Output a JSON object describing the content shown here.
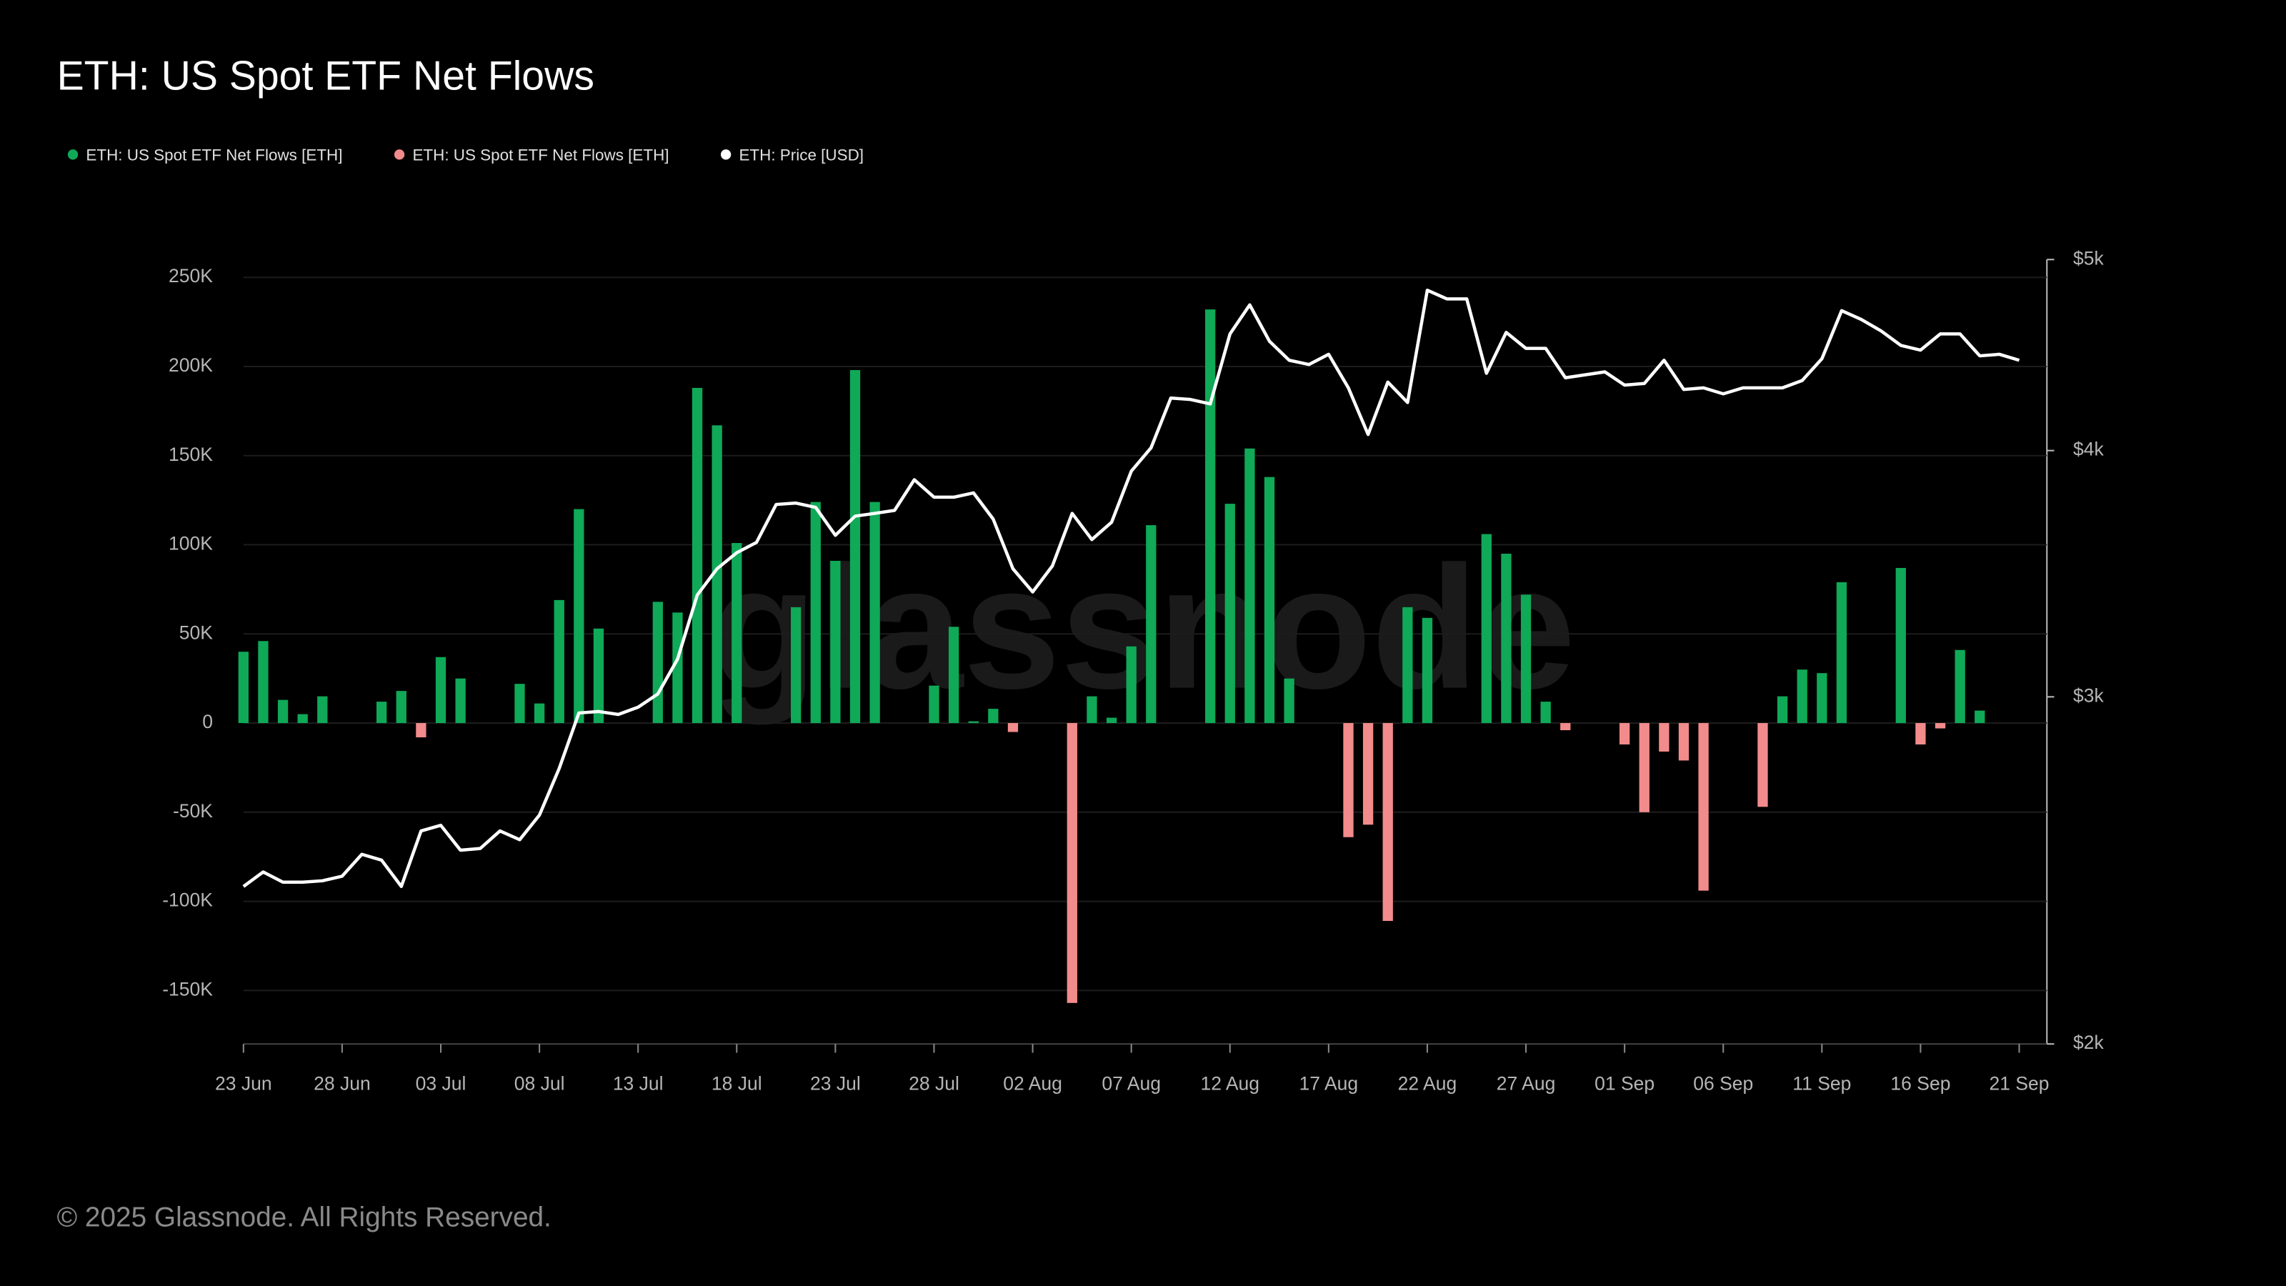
{
  "chart_data": {
    "type": "bar-line",
    "title": "ETH: US Spot ETF Net Flows",
    "watermark": "glassnode",
    "footer": "© 2025 Glassnode. All Rights Reserved.",
    "categories": [
      "23 Jun",
      null,
      null,
      null,
      null,
      "28 Jun",
      null,
      null,
      null,
      null,
      "03 Jul",
      null,
      null,
      null,
      null,
      "08 Jul",
      null,
      null,
      null,
      null,
      "13 Jul",
      null,
      null,
      null,
      null,
      "18 Jul",
      null,
      null,
      null,
      null,
      "23 Jul",
      null,
      null,
      null,
      null,
      "28 Jul",
      null,
      null,
      null,
      null,
      "02 Aug",
      null,
      null,
      null,
      null,
      "07 Aug",
      null,
      null,
      null,
      null,
      "12 Aug",
      null,
      null,
      null,
      null,
      "17 Aug",
      null,
      null,
      null,
      null,
      "22 Aug",
      null,
      null,
      null,
      null,
      "27 Aug",
      null,
      null,
      null,
      null,
      "01 Sep",
      null,
      null,
      null,
      null,
      "06 Sep",
      null,
      null,
      null,
      null,
      "11 Sep",
      null,
      null,
      null,
      null,
      "16 Sep",
      null,
      null,
      null,
      null,
      "21 Sep"
    ],
    "series": [
      {
        "name": "ETH: US Spot ETF Net Flows [ETH]",
        "color": "#0fa958",
        "type": "bar",
        "values": [
          40000,
          46000,
          13000,
          5000,
          15000,
          null,
          null,
          12000,
          18000,
          null,
          37000,
          25000,
          null,
          null,
          22000,
          11000,
          69000,
          120000,
          53000,
          null,
          null,
          68000,
          62000,
          188000,
          167000,
          101000,
          null,
          null,
          65000,
          124000,
          91000,
          198000,
          124000,
          null,
          null,
          21000,
          54000,
          1000,
          8000,
          null,
          null,
          null,
          null,
          15000,
          3000,
          43000,
          111000,
          null,
          null,
          232000,
          123000,
          154000,
          138000,
          25000,
          null,
          null,
          null,
          null,
          null,
          65000,
          59000,
          null,
          null,
          106000,
          95000,
          72000,
          12000,
          null,
          null,
          null,
          null,
          null,
          null,
          null,
          null,
          null,
          null,
          null,
          15000,
          30000,
          28000,
          79000,
          null,
          null,
          87000,
          null,
          null,
          41000,
          7000,
          null,
          null
        ]
      },
      {
        "name": "ETH: US Spot ETF Net Flows [ETH]",
        "color": "#f28b8b",
        "type": "bar",
        "values": [
          null,
          null,
          null,
          null,
          null,
          null,
          null,
          null,
          null,
          -8000,
          null,
          null,
          null,
          null,
          null,
          null,
          null,
          null,
          null,
          null,
          null,
          null,
          null,
          null,
          null,
          null,
          null,
          null,
          null,
          null,
          null,
          null,
          null,
          null,
          null,
          null,
          null,
          null,
          null,
          -5000,
          null,
          null,
          -157000,
          null,
          null,
          null,
          null,
          null,
          null,
          null,
          null,
          null,
          null,
          null,
          null,
          null,
          -64000,
          -57000,
          -111000,
          null,
          null,
          null,
          null,
          null,
          null,
          null,
          null,
          -4000,
          null,
          null,
          -12000,
          -50000,
          -16000,
          -21000,
          -94000,
          null,
          null,
          -47000,
          null,
          null,
          null,
          null,
          null,
          null,
          null,
          -12000,
          -3000,
          null,
          null,
          null,
          null
        ]
      },
      {
        "name": "ETH: Price [USD]",
        "color": "#ffffff",
        "type": "line",
        "axis": "y2",
        "values": [
          2404,
          2445,
          2416,
          2416,
          2420,
          2433,
          2496,
          2479,
          2404,
          2565,
          2582,
          2508,
          2513,
          2565,
          2539,
          2613,
          2759,
          2944,
          2949,
          2939,
          2964,
          3010,
          3135,
          3379,
          3484,
          3550,
          3593,
          3756,
          3762,
          3743,
          3623,
          3705,
          3717,
          3730,
          3866,
          3788,
          3788,
          3807,
          3692,
          3484,
          3391,
          3496,
          3717,
          3605,
          3679,
          3905,
          4013,
          4253,
          4246,
          4224,
          4584,
          4742,
          4545,
          4445,
          4423,
          4476,
          4304,
          4076,
          4333,
          4231,
          4824,
          4775,
          4775,
          4378,
          4592,
          4507,
          4507,
          4355,
          4370,
          4385,
          4318,
          4326,
          4445,
          4296,
          4304,
          4274,
          4304,
          4304,
          4304,
          4341,
          4453,
          4710,
          4662,
          4600,
          4523,
          4498,
          4584,
          4584,
          4468,
          4476,
          4445
        ]
      }
    ],
    "ylim": [
      -180000,
      260000
    ],
    "yticks": [
      {
        "value": -150000,
        "label": "-150K"
      },
      {
        "value": -100000,
        "label": "-100K"
      },
      {
        "value": -50000,
        "label": "-50K"
      },
      0,
      {
        "value": 50000,
        "label": "50K"
      },
      {
        "value": 100000,
        "label": "100K"
      },
      {
        "value": 150000,
        "label": "150K"
      },
      {
        "value": 200000,
        "label": "200K"
      },
      {
        "value": 250000,
        "label": "250K"
      }
    ],
    "y2lim": [
      2000,
      5000
    ],
    "y2log": true,
    "y2ticks": [
      {
        "value": 2000,
        "label": "$2k"
      },
      {
        "value": 3000,
        "label": "$3k"
      },
      {
        "value": 4000,
        "label": "$4k"
      },
      {
        "value": 5000,
        "label": "$5k"
      }
    ],
    "grid": true
  }
}
